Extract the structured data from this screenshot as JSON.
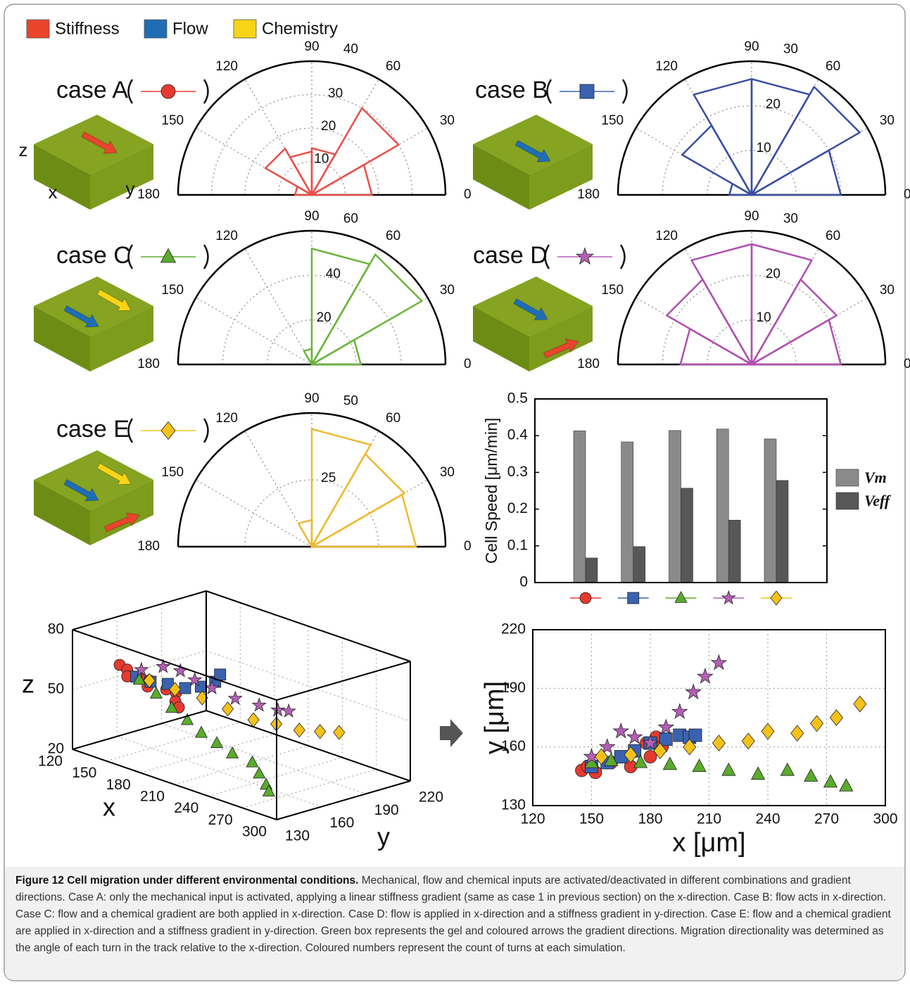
{
  "legend": [
    {
      "name": "Stiffness",
      "color": "#e8452c"
    },
    {
      "name": "Flow",
      "color": "#1f6db5"
    },
    {
      "name": "Chemistry",
      "color": "#f7d417"
    }
  ],
  "box_axis_labels": [
    "z",
    "x",
    "y"
  ],
  "chart_data": [
    {
      "type": "rose",
      "title": "case A",
      "marker": "circle",
      "marker_color": "#e53a30",
      "color": "#e8504a",
      "tick_color": "#a52a2a",
      "values": [
        18,
        30,
        14,
        13,
        16,
        5
      ],
      "rlim": [
        0,
        40
      ],
      "rticks": [
        10,
        20,
        30,
        40
      ],
      "thetaticks": [
        0,
        30,
        60,
        90,
        120,
        150,
        180
      ]
    },
    {
      "type": "rose",
      "title": "case B",
      "marker": "square",
      "marker_color": "#3a62b0",
      "color": "#3a4fa0",
      "tick_color": "#3a4fa0",
      "values": [
        20,
        28,
        26,
        26,
        18,
        5
      ],
      "rlim": [
        0,
        30
      ],
      "rticks": [
        10,
        20,
        30
      ],
      "thetaticks": [
        0,
        30,
        60,
        90,
        120,
        150,
        180
      ]
    },
    {
      "type": "rose",
      "title": "case C",
      "marker": "triangle",
      "marker_color": "#5aab2c",
      "color": "#6ab43a",
      "tick_color": "#4a8a2a",
      "values": [
        22,
        57,
        52,
        7,
        0,
        0
      ],
      "rlim": [
        0,
        60
      ],
      "rticks": [
        20,
        40,
        60
      ],
      "thetaticks": [
        0,
        30,
        60,
        90,
        120,
        150,
        180
      ]
    },
    {
      "type": "rose",
      "title": "case D",
      "marker": "star",
      "marker_color": "#b45fb4",
      "color": "#b050b0",
      "tick_color": "#904090",
      "values": [
        20,
        22,
        27,
        27,
        22,
        16
      ],
      "rlim": [
        0,
        30
      ],
      "rticks": [
        10,
        20,
        30
      ],
      "thetaticks": [
        0,
        30,
        60,
        90,
        120,
        150,
        180
      ]
    },
    {
      "type": "rose",
      "title": "case E",
      "marker": "diamond",
      "marker_color": "#f5c21a",
      "color": "#f0b830",
      "tick_color": "#b8860b",
      "values": [
        39,
        40,
        44,
        10,
        0,
        0
      ],
      "rlim": [
        0,
        50
      ],
      "rticks": [
        25,
        50
      ],
      "thetaticks": [
        0,
        30,
        60,
        90,
        120,
        150,
        180
      ]
    },
    {
      "type": "bar",
      "ylabel": "Cell Speed [μm/min]",
      "categories": [
        null,
        null,
        null,
        null,
        null
      ],
      "category_markers": [
        {
          "marker": "circle",
          "color": "#e53a30"
        },
        {
          "marker": "square",
          "color": "#3a62b0"
        },
        {
          "marker": "triangle",
          "color": "#5aab2c"
        },
        {
          "marker": "star",
          "color": "#b45fb4"
        },
        {
          "marker": "diamond",
          "color": "#f5c21a"
        }
      ],
      "series": [
        {
          "name": "Vm",
          "color": "#8a8a8a",
          "values": [
            0.413,
            0.383,
            0.414,
            0.418,
            0.391
          ]
        },
        {
          "name": "Veff",
          "color": "#575757",
          "values": [
            0.067,
            0.098,
            0.257,
            0.17,
            0.278
          ]
        }
      ],
      "ylim": [
        0,
        0.5
      ],
      "yticks": [
        0,
        0.1,
        0.2,
        0.3,
        0.4,
        0.5
      ]
    },
    {
      "type": "scatter3d",
      "xlabel": "x",
      "ylabel": "y",
      "zlabel": "z",
      "xlim": [
        120,
        300
      ],
      "ylim": [
        130,
        220
      ],
      "zlim": [
        20,
        80
      ],
      "xticks": [
        120,
        150,
        180,
        210,
        240,
        270,
        300
      ],
      "yticks": [
        130,
        160,
        190,
        220
      ],
      "zticks": [
        20,
        50,
        80
      ],
      "series": [
        {
          "marker": "circle",
          "color": "#e53a30",
          "x": [
            138,
            142,
            146,
            150,
            155,
            160,
            166,
            172,
            178,
            185
          ],
          "y": [
            148,
            150,
            147,
            152,
            155,
            150,
            158,
            160,
            155,
            152
          ],
          "z": [
            62,
            60,
            58,
            57,
            56,
            55,
            53,
            52,
            50,
            49
          ]
        },
        {
          "marker": "square",
          "color": "#3a62b0",
          "x": [
            150,
            160,
            170,
            180,
            190,
            200,
            203
          ],
          "y": [
            150,
            152,
            156,
            160,
            163,
            165,
            166
          ],
          "z": [
            58,
            57,
            57,
            56,
            58,
            62,
            66
          ]
        },
        {
          "marker": "triangle",
          "color": "#5aab2c",
          "x": [
            150,
            165,
            180,
            195,
            210,
            225,
            240,
            255,
            265,
            275,
            280
          ],
          "y": [
            152,
            152,
            151,
            150,
            148,
            147,
            146,
            148,
            145,
            142,
            140
          ],
          "z": [
            56,
            52,
            48,
            45,
            42,
            40,
            38,
            36,
            33,
            30,
            28
          ]
        },
        {
          "marker": "star",
          "color": "#b45fb4",
          "x": [
            148,
            158,
            168,
            178,
            188,
            198,
            206,
            212,
            215
          ],
          "y": [
            155,
            162,
            166,
            168,
            172,
            180,
            190,
            198,
            203
          ],
          "z": [
            60,
            62,
            61,
            58,
            55,
            50,
            46,
            43,
            42
          ]
        },
        {
          "marker": "diamond",
          "color": "#f5c21a",
          "x": [
            155,
            175,
            195,
            215,
            235,
            250,
            265,
            278,
            287
          ],
          "y": [
            155,
            157,
            160,
            162,
            164,
            168,
            172,
            176,
            182
          ],
          "z": [
            56,
            55,
            54,
            52,
            50,
            50,
            49,
            50,
            50
          ]
        }
      ]
    },
    {
      "type": "scatter",
      "xlabel": "x [μm]",
      "ylabel": "y [μm]",
      "xlim": [
        120,
        300
      ],
      "ylim": [
        130,
        220
      ],
      "xticks": [
        120,
        150,
        180,
        210,
        240,
        270,
        300
      ],
      "yticks": [
        130,
        160,
        190,
        220
      ],
      "grid": true,
      "series": [
        {
          "marker": "circle",
          "color": "#e53a30",
          "x": [
            145,
            148,
            152,
            158,
            165,
            172,
            178,
            183,
            186,
            180,
            170,
            160
          ],
          "y": [
            148,
            150,
            147,
            152,
            155,
            158,
            162,
            165,
            160,
            155,
            150,
            152
          ]
        },
        {
          "marker": "square",
          "color": "#3a62b0",
          "x": [
            150,
            158,
            165,
            172,
            180,
            188,
            195,
            200,
            203
          ],
          "y": [
            150,
            152,
            155,
            158,
            162,
            164,
            166,
            165,
            166
          ]
        },
        {
          "marker": "triangle",
          "color": "#5aab2c",
          "x": [
            150,
            160,
            175,
            190,
            205,
            220,
            235,
            250,
            262,
            272,
            280
          ],
          "y": [
            152,
            153,
            152,
            151,
            150,
            148,
            146,
            148,
            145,
            142,
            140
          ]
        },
        {
          "marker": "star",
          "color": "#b45fb4",
          "x": [
            150,
            158,
            165,
            172,
            180,
            188,
            195,
            202,
            208,
            215
          ],
          "y": [
            155,
            160,
            168,
            165,
            162,
            170,
            178,
            188,
            196,
            203
          ]
        },
        {
          "marker": "diamond",
          "color": "#f5c21a",
          "x": [
            155,
            170,
            185,
            200,
            215,
            230,
            240,
            255,
            265,
            275,
            287
          ],
          "y": [
            155,
            156,
            158,
            160,
            162,
            163,
            168,
            167,
            172,
            175,
            182
          ]
        }
      ]
    }
  ],
  "caption": {
    "title": "Figure 12 Cell migration under different environmental conditions.",
    "text": "Mechanical, flow and chemical inputs are activated/deactivated in different combinations and gradient directions. Case A: only the mechanical input is activated, applying a linear stiffness gradient (same as case 1 in previous section) on the x-direction. Case B: flow acts in x-direction. Case C: flow and a chemical gradient are both applied in x-direction. Case D: flow is applied in x-direction and a stiffness gradient in y-direction. Case E: flow and a chemical gradient are applied in x-direction and a stiffness gradient in y-direction. Green box represents the gel and coloured arrows the gradient directions. Migration directionality was determined as the angle of each turn in the track relative to the x-direction. Coloured numbers represent the count of turns at each simulation."
  }
}
